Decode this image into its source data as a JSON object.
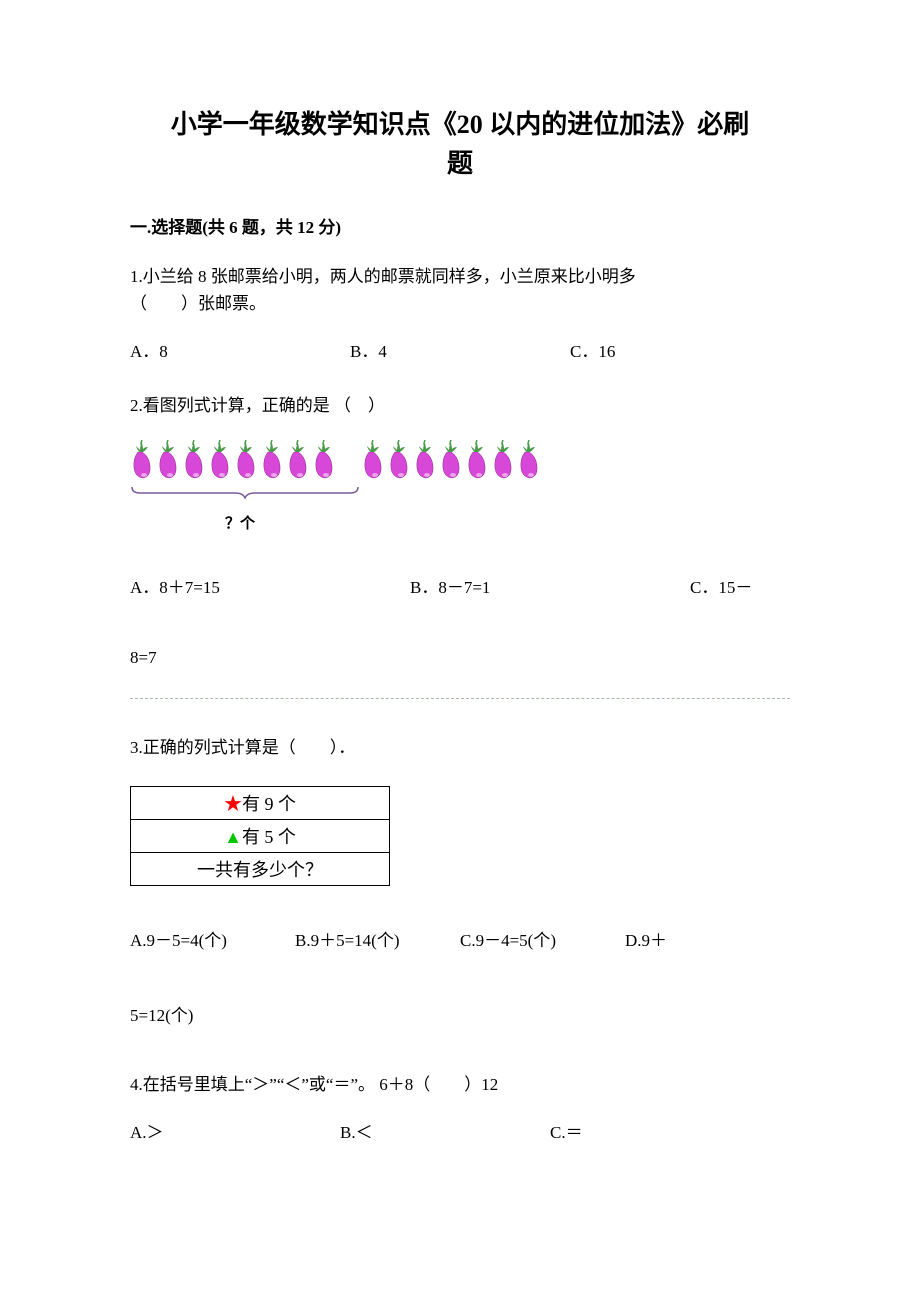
{
  "title_line1": "小学一年级数学知识点《20 以内的进位加法》必刷",
  "title_line2": "题",
  "section1_header": "一.选择题(共 6 题，共 12 分)",
  "q1": {
    "text_line1": "1.小兰给 8 张邮票给小明，两人的邮票就同样多，小兰原来比小明多",
    "text_line2": "（　　）张邮票。",
    "opt_a": "A．8",
    "opt_b": "B．4",
    "opt_c": "C．16"
  },
  "q2": {
    "text": "2.看图列式计算，正确的是 （　）",
    "group1_count": 8,
    "group2_count": 7,
    "eggplant_body_color": "#d848d8",
    "eggplant_leaf_color": "#4a9a4a",
    "brace_color": "#7a5a9a",
    "count_label": "？个",
    "opt_a": "A．8＋7=15",
    "opt_b": "B．8－7=1",
    "opt_c": "C．15－",
    "opt_c_tail": "8=7"
  },
  "q3": {
    "text": "3.正确的列式计算是（　　）．",
    "table": {
      "star_symbol": "★",
      "row1_text": "有 9 个",
      "tri_symbol": "▲",
      "row2_text": "有 5 个",
      "row3_text": "一共有多少个？"
    },
    "opt_a": "A.9－5=4(个)",
    "opt_b": "B.9＋5=14(个)",
    "opt_c": "C.9－4=5(个)",
    "opt_d": "D.9＋",
    "opt_d_tail": "5=12(个)"
  },
  "q4": {
    "text": "4.在括号里填上“＞”“＜”或“＝”。 6＋8（　　）12",
    "opt_a": "A.＞",
    "opt_b": "B.＜",
    "opt_c": "C.＝"
  },
  "colors": {
    "text": "#000000",
    "background": "#ffffff",
    "divider": "#a8b8a8",
    "star": "#ff0000",
    "triangle": "#00c800"
  },
  "typography": {
    "title_fontsize": 26,
    "body_fontsize": 17,
    "font_family": "SimSun"
  }
}
